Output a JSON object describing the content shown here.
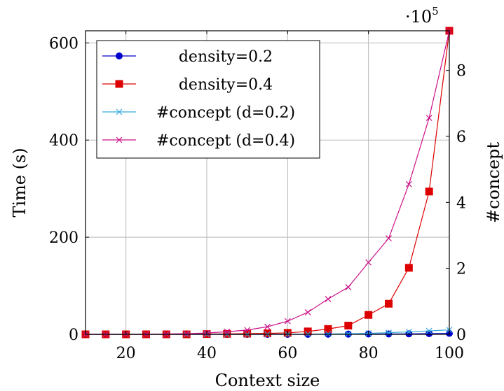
{
  "chart_data": {
    "type": "line",
    "title": "",
    "xlabel": "Context size",
    "ylabel_left": "Time (s)",
    "ylabel_right": "#concept",
    "right_axis_multiplier": "·10",
    "right_axis_exponent": "5",
    "xlim": [
      10,
      100
    ],
    "ylim_left": [
      0,
      625
    ],
    "ylim_right": [
      0,
      920000
    ],
    "x_ticks": [
      20,
      40,
      60,
      80,
      100
    ],
    "y_left_ticks": [
      0,
      200,
      400,
      600
    ],
    "y_right_ticks": [
      0,
      2,
      4,
      6,
      8
    ],
    "grid": true,
    "legend_position": "top-left",
    "x": [
      10,
      15,
      20,
      25,
      30,
      35,
      40,
      45,
      50,
      55,
      60,
      65,
      70,
      75,
      80,
      85,
      90,
      95,
      100
    ],
    "series": [
      {
        "name": "density=0.2",
        "axis": "left",
        "color": "#0000cc",
        "marker": "circle",
        "values": [
          0,
          0,
          0,
          0,
          0,
          0,
          0,
          0,
          0,
          0,
          0,
          0,
          0.3,
          0.5,
          0.7,
          0.8,
          1,
          1.5,
          2
        ]
      },
      {
        "name": "density=0.4",
        "axis": "left",
        "color": "#dd0000",
        "marker": "square",
        "values": [
          0,
          0,
          0,
          0,
          0,
          0,
          0.5,
          1,
          1.5,
          2,
          3,
          6,
          11,
          18,
          40,
          63,
          137,
          294,
          625
        ]
      },
      {
        "name": "#concept (d=0.2)",
        "axis": "right",
        "color": "#33aadd",
        "marker": "cross",
        "values": [
          0,
          0,
          0,
          0,
          0,
          0,
          0,
          0,
          0,
          100,
          300,
          600,
          1000,
          1800,
          3000,
          5000,
          7500,
          10500,
          13500
        ]
      },
      {
        "name": "#concept (d=0.4)",
        "axis": "right",
        "color": "#cc1188",
        "marker": "cross",
        "values": [
          0,
          0,
          0,
          0,
          1000,
          2000,
          4000,
          8000,
          13000,
          23000,
          40000,
          67000,
          107000,
          143000,
          218000,
          291000,
          455000,
          656000,
          920000
        ]
      }
    ]
  }
}
